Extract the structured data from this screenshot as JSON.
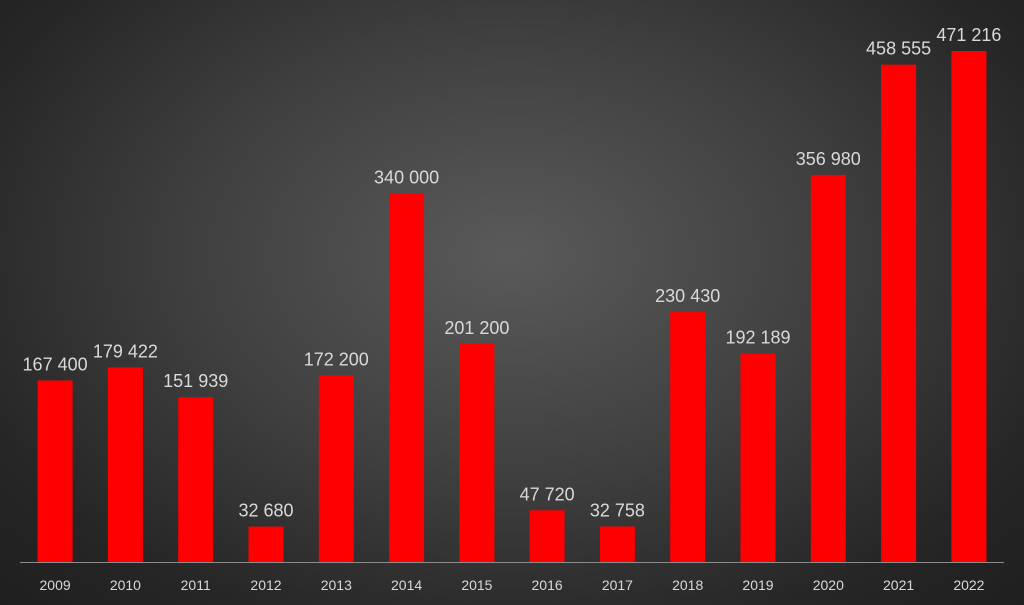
{
  "chart_data": {
    "type": "bar",
    "title": "",
    "xlabel": "",
    "ylabel": "",
    "categories": [
      "2009",
      "2010",
      "2011",
      "2012",
      "2013",
      "2014",
      "2015",
      "2016",
      "2017",
      "2018",
      "2019",
      "2020",
      "2021",
      "2022"
    ],
    "values": [
      167400,
      179422,
      151939,
      32680,
      172200,
      340000,
      201200,
      47720,
      32758,
      230430,
      192189,
      356980,
      458555,
      471216
    ],
    "data_labels": [
      "167 400",
      "179 422",
      "151 939",
      "32 680",
      "172 200",
      "340 000",
      "201 200",
      "47 720",
      "32 758",
      "230 430",
      "192 189",
      "356 980",
      "458 555",
      "471 216"
    ],
    "ylim": [
      0,
      480000
    ],
    "grid": false,
    "legend": "none",
    "colors": {
      "bar": "#ff0000",
      "label_text": "#d9d9d9",
      "axis_line": "#8c8c8c"
    }
  }
}
